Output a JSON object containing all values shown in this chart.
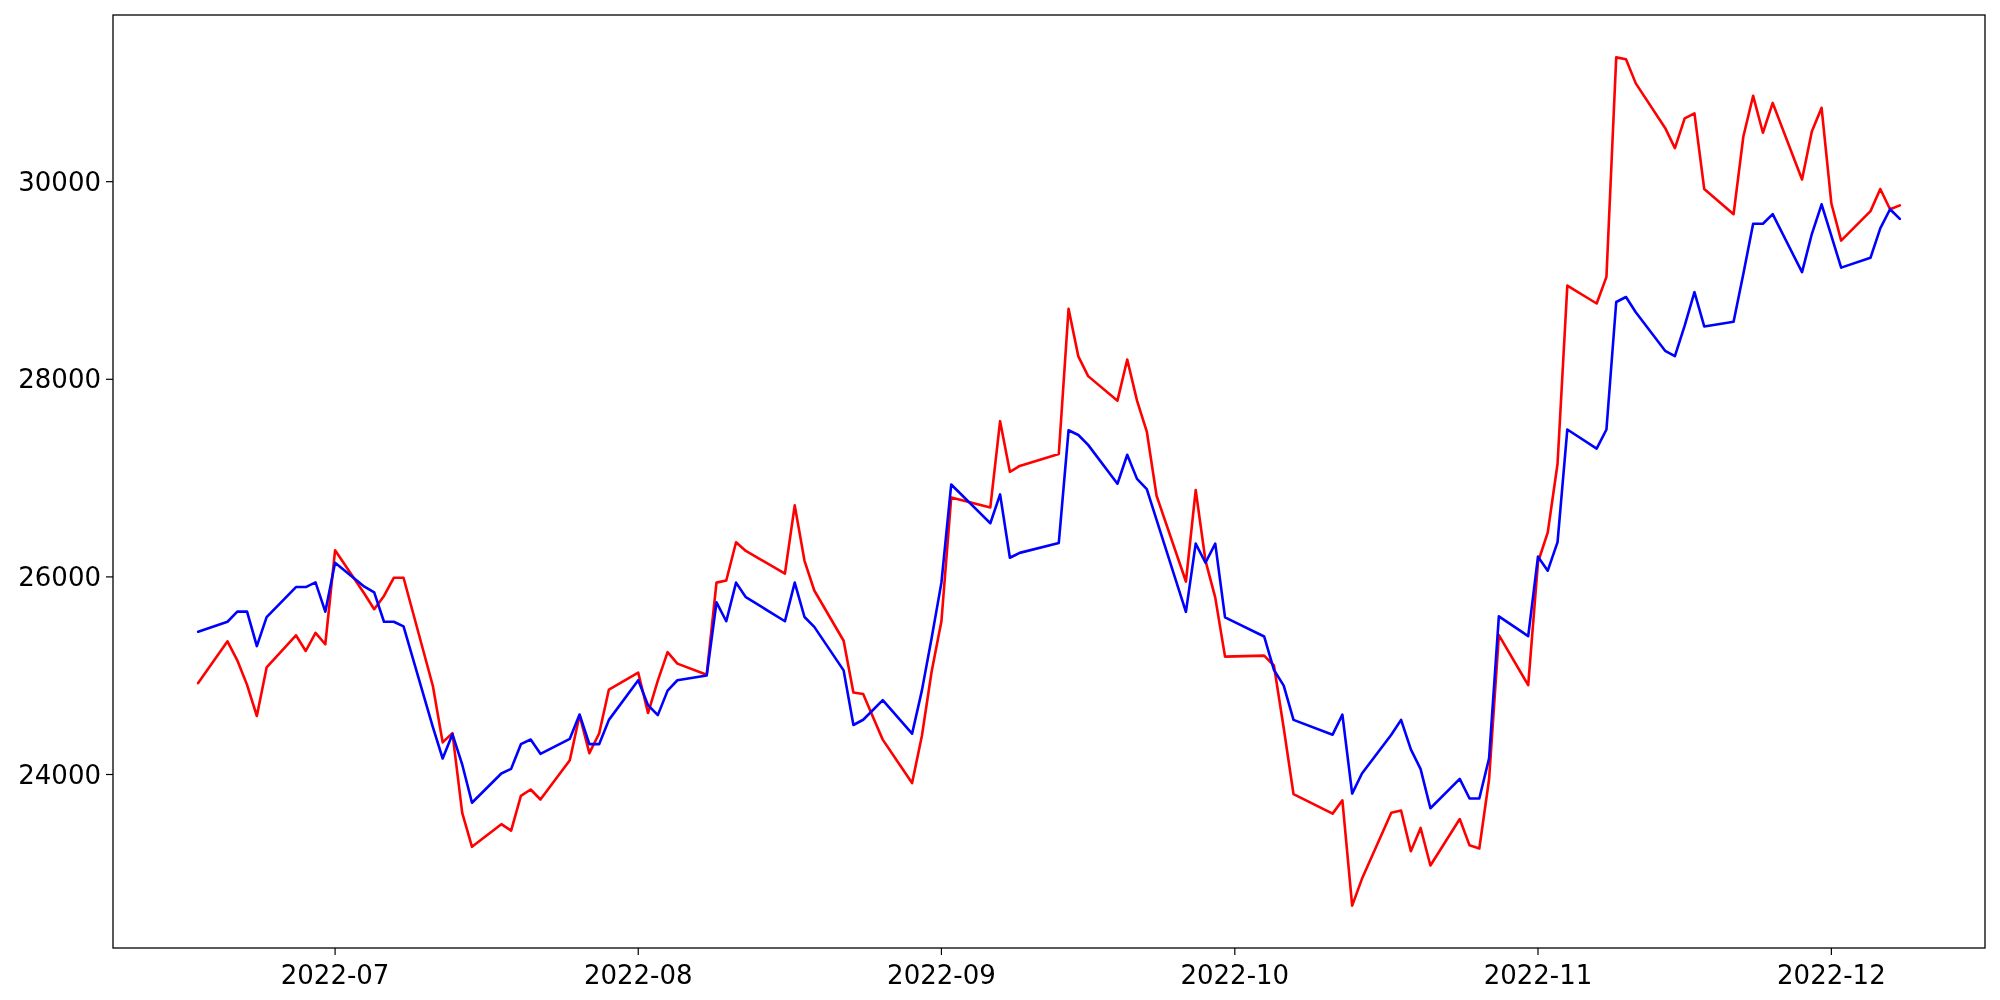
{
  "chart_data": {
    "type": "line",
    "x": [
      "2022-06-17",
      "2022-06-20",
      "2022-06-21",
      "2022-06-22",
      "2022-06-23",
      "2022-06-24",
      "2022-06-27",
      "2022-06-28",
      "2022-06-29",
      "2022-06-30",
      "2022-07-01",
      "2022-07-04",
      "2022-07-05",
      "2022-07-06",
      "2022-07-07",
      "2022-07-08",
      "2022-07-11",
      "2022-07-12",
      "2022-07-13",
      "2022-07-14",
      "2022-07-15",
      "2022-07-18",
      "2022-07-19",
      "2022-07-20",
      "2022-07-21",
      "2022-07-22",
      "2022-07-25",
      "2022-07-26",
      "2022-07-27",
      "2022-07-28",
      "2022-07-29",
      "2022-08-01",
      "2022-08-02",
      "2022-08-03",
      "2022-08-04",
      "2022-08-05",
      "2022-08-08",
      "2022-08-09",
      "2022-08-10",
      "2022-08-11",
      "2022-08-12",
      "2022-08-16",
      "2022-08-17",
      "2022-08-18",
      "2022-08-19",
      "2022-08-22",
      "2022-08-23",
      "2022-08-24",
      "2022-08-25",
      "2022-08-26",
      "2022-08-29",
      "2022-08-30",
      "2022-08-31",
      "2022-09-01",
      "2022-09-02",
      "2022-09-06",
      "2022-09-07",
      "2022-09-08",
      "2022-09-09",
      "2022-09-13",
      "2022-09-14",
      "2022-09-15",
      "2022-09-16",
      "2022-09-19",
      "2022-09-20",
      "2022-09-21",
      "2022-09-22",
      "2022-09-23",
      "2022-09-26",
      "2022-09-27",
      "2022-09-28",
      "2022-09-29",
      "2022-09-30",
      "2022-10-04",
      "2022-10-05",
      "2022-10-06",
      "2022-10-07",
      "2022-10-11",
      "2022-10-12",
      "2022-10-13",
      "2022-10-14",
      "2022-10-17",
      "2022-10-18",
      "2022-10-19",
      "2022-10-20",
      "2022-10-21",
      "2022-10-24",
      "2022-10-25",
      "2022-10-26",
      "2022-10-27",
      "2022-10-28",
      "2022-10-31",
      "2022-11-01",
      "2022-11-02",
      "2022-11-03",
      "2022-11-04",
      "2022-11-07",
      "2022-11-08",
      "2022-11-09",
      "2022-11-10",
      "2022-11-11",
      "2022-11-14",
      "2022-11-15",
      "2022-11-16",
      "2022-11-17",
      "2022-11-18",
      "2022-11-21",
      "2022-11-22",
      "2022-11-23",
      "2022-11-24",
      "2022-11-25",
      "2022-11-28",
      "2022-11-29",
      "2022-11-30",
      "2022-12-01",
      "2022-12-02",
      "2022-12-05",
      "2022-12-06",
      "2022-12-07",
      "2022-12-08"
    ],
    "series": [
      {
        "color": "#ff0000",
        "values": [
          24925,
          25348,
          25156,
          24907,
          24592,
          25084,
          25409,
          25250,
          25434,
          25318,
          26269,
          25830,
          25673,
          25807,
          25991,
          25991,
          24896,
          24325,
          24419,
          23612,
          23268,
          23497,
          23432,
          23783,
          23848,
          23747,
          24144,
          24600,
          24216,
          24415,
          24860,
          25030,
          24622,
          24950,
          25238,
          25122,
          25010,
          25942,
          25963,
          26351,
          26263,
          26034,
          26724,
          26163,
          25862,
          25354,
          24830,
          24814,
          24581,
          24353,
          23913,
          24389,
          25042,
          25551,
          26804,
          26703,
          27576,
          27064,
          27123,
          27244,
          28713,
          28232,
          28032,
          27784,
          28200,
          27784,
          27471,
          26821,
          25953,
          26879,
          26165,
          25790,
          25193,
          25203,
          25103,
          24471,
          23802,
          23604,
          23739,
          22673,
          22944,
          23613,
          23635,
          23224,
          23459,
          23079,
          23549,
          23283,
          23251,
          23952,
          25411,
          24904,
          26148,
          26450,
          27145,
          28948,
          28767,
          29037,
          31258,
          31239,
          30995,
          30544,
          30339,
          30640,
          30691,
          29926,
          29671,
          30457,
          30869,
          30495,
          30797,
          30022,
          30507,
          30748,
          29779,
          29404,
          29702,
          29926,
          29721,
          29760
        ]
      },
      {
        "color": "#0000ff",
        "values": [
          25445,
          25546,
          25648,
          25648,
          25300,
          25593,
          25897,
          25897,
          25944,
          25648,
          26143,
          25901,
          25843,
          25546,
          25546,
          25499,
          24480,
          24162,
          24408,
          24101,
          23714,
          24010,
          24057,
          24307,
          24354,
          24209,
          24361,
          24607,
          24307,
          24307,
          24553,
          24954,
          24702,
          24601,
          24849,
          24954,
          25002,
          25743,
          25551,
          25942,
          25795,
          25551,
          25942,
          25594,
          25494,
          25054,
          24501,
          24554,
          24653,
          24753,
          24413,
          24849,
          25382,
          25942,
          26935,
          26543,
          26835,
          26194,
          26243,
          26343,
          27484,
          27436,
          27336,
          26943,
          27236,
          26992,
          26889,
          26577,
          25646,
          26337,
          26143,
          26337,
          25591,
          25397,
          25059,
          24900,
          24553,
          24403,
          24606,
          23807,
          24010,
          24403,
          24553,
          24254,
          24055,
          23658,
          23956,
          23757,
          23757,
          24164,
          25601,
          25400,
          26205,
          26063,
          26352,
          27492,
          27299,
          27492,
          28782,
          28833,
          28678,
          28288,
          28234,
          28543,
          28882,
          28535,
          28582,
          29068,
          29574,
          29574,
          29671,
          29084,
          29470,
          29771,
          29451,
          29130,
          29230,
          29528,
          29721,
          29624
        ]
      }
    ],
    "xlim": [
      "2022-06-08T07:00",
      "2022-12-16T17:00"
    ],
    "ylim": [
      22244,
      31687
    ],
    "xticks": [
      {
        "value": "2022-07-01",
        "label": "2022-07"
      },
      {
        "value": "2022-08-01",
        "label": "2022-08"
      },
      {
        "value": "2022-09-01",
        "label": "2022-09"
      },
      {
        "value": "2022-10-01",
        "label": "2022-10"
      },
      {
        "value": "2022-11-01",
        "label": "2022-11"
      },
      {
        "value": "2022-12-01",
        "label": "2022-12"
      }
    ],
    "yticks": [
      24000,
      26000,
      28000,
      30000
    ]
  }
}
